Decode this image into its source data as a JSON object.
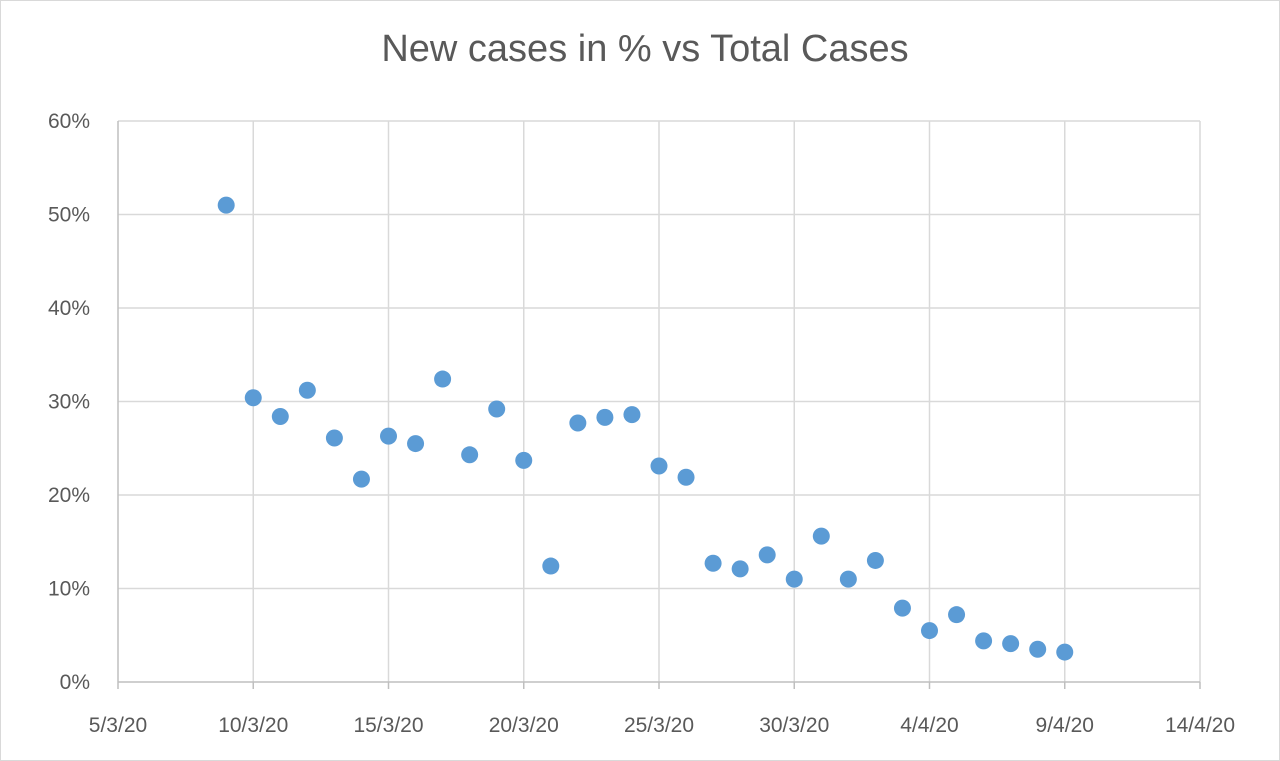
{
  "chart_data": {
    "type": "scatter",
    "title": "New cases in % vs Total Cases",
    "xlabel": "",
    "ylabel": "",
    "x_axis_type": "date",
    "xlim": [
      "2020-03-05",
      "2020-04-14"
    ],
    "ylim": [
      0,
      0.6
    ],
    "x_ticks": [
      "5/3/20",
      "10/3/20",
      "15/3/20",
      "20/3/20",
      "25/3/20",
      "30/3/20",
      "4/4/20",
      "9/4/20",
      "14/4/20"
    ],
    "y_ticks": [
      "0%",
      "10%",
      "20%",
      "30%",
      "40%",
      "50%",
      "60%"
    ],
    "grid": true,
    "legend": "none",
    "marker_color": "#5b9bd5",
    "points": [
      {
        "x": "2020-03-09",
        "y": 0.51
      },
      {
        "x": "2020-03-10",
        "y": 0.304
      },
      {
        "x": "2020-03-11",
        "y": 0.284
      },
      {
        "x": "2020-03-12",
        "y": 0.312
      },
      {
        "x": "2020-03-13",
        "y": 0.261
      },
      {
        "x": "2020-03-14",
        "y": 0.217
      },
      {
        "x": "2020-03-15",
        "y": 0.263
      },
      {
        "x": "2020-03-16",
        "y": 0.255
      },
      {
        "x": "2020-03-17",
        "y": 0.324
      },
      {
        "x": "2020-03-18",
        "y": 0.243
      },
      {
        "x": "2020-03-19",
        "y": 0.292
      },
      {
        "x": "2020-03-20",
        "y": 0.237
      },
      {
        "x": "2020-03-21",
        "y": 0.124
      },
      {
        "x": "2020-03-22",
        "y": 0.277
      },
      {
        "x": "2020-03-23",
        "y": 0.283
      },
      {
        "x": "2020-03-24",
        "y": 0.286
      },
      {
        "x": "2020-03-25",
        "y": 0.231
      },
      {
        "x": "2020-03-26",
        "y": 0.219
      },
      {
        "x": "2020-03-27",
        "y": 0.127
      },
      {
        "x": "2020-03-28",
        "y": 0.121
      },
      {
        "x": "2020-03-29",
        "y": 0.136
      },
      {
        "x": "2020-03-30",
        "y": 0.11
      },
      {
        "x": "2020-03-31",
        "y": 0.156
      },
      {
        "x": "2020-04-01",
        "y": 0.11
      },
      {
        "x": "2020-04-02",
        "y": 0.13
      },
      {
        "x": "2020-04-03",
        "y": 0.079
      },
      {
        "x": "2020-04-04",
        "y": 0.055
      },
      {
        "x": "2020-04-05",
        "y": 0.072
      },
      {
        "x": "2020-04-06",
        "y": 0.044
      },
      {
        "x": "2020-04-07",
        "y": 0.041
      },
      {
        "x": "2020-04-08",
        "y": 0.035
      },
      {
        "x": "2020-04-09",
        "y": 0.032
      }
    ]
  }
}
